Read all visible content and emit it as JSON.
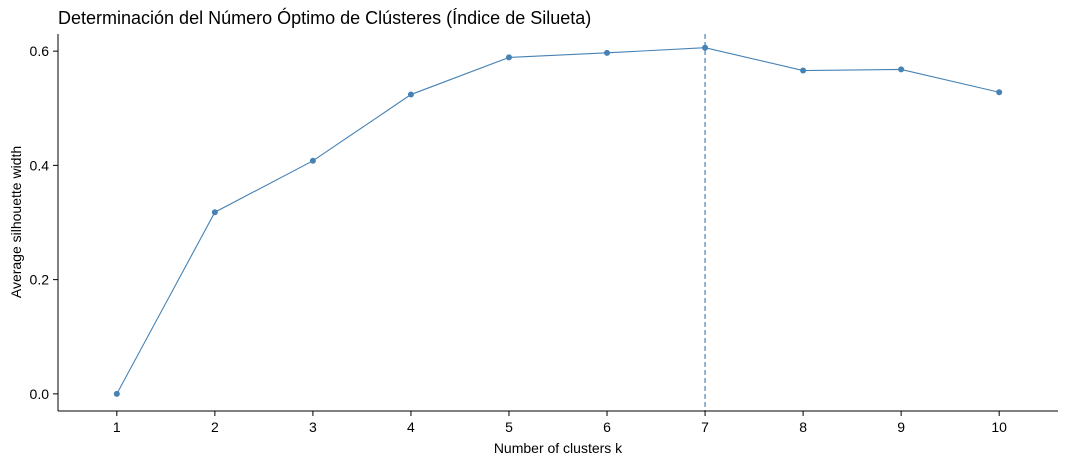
{
  "chart_data": {
    "type": "line",
    "title": "Determinación del Número Óptimo de Clústeres (Índice de Silueta)",
    "xlabel": "Number of clusters k",
    "ylabel": "Average silhouette width",
    "x": [
      "1",
      "2",
      "3",
      "4",
      "5",
      "6",
      "7",
      "8",
      "9",
      "10"
    ],
    "values": [
      0.0,
      0.318,
      0.408,
      0.524,
      0.589,
      0.597,
      0.606,
      0.566,
      0.568,
      0.528
    ],
    "ylim": [
      -0.03,
      0.63
    ],
    "yticks": [
      0.0,
      0.2,
      0.4,
      0.6
    ],
    "ytick_labels": [
      "0.0",
      "0.2",
      "0.4",
      "0.6"
    ],
    "optimal_k": 7,
    "grid": false,
    "legend": "none",
    "colors": {
      "line": "#4682B4",
      "point": "#4682B4",
      "vline": "#4682B4",
      "axis": "#000000"
    }
  }
}
